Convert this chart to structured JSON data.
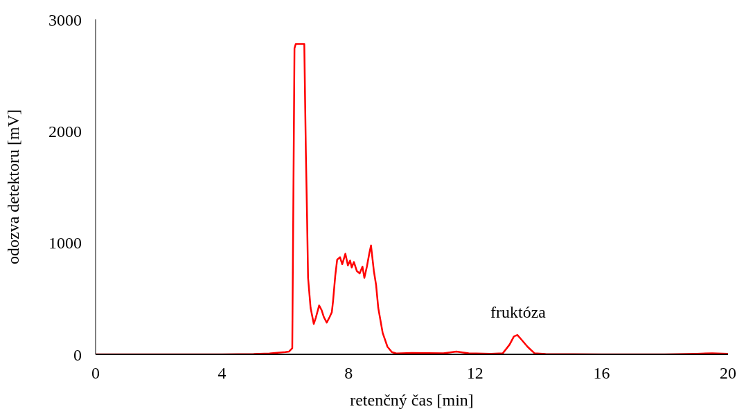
{
  "chart_data": {
    "type": "line",
    "xlabel": "retenčný čas [min]",
    "ylabel": "odozva detektoru [mV]",
    "x": [
      0,
      2,
      4,
      5,
      5.5,
      5.8,
      6.0,
      6.12,
      6.22,
      6.29,
      6.33,
      6.6,
      6.65,
      6.69,
      6.72,
      6.8,
      6.9,
      6.97,
      7.07,
      7.15,
      7.22,
      7.31,
      7.4,
      7.47,
      7.51,
      7.58,
      7.64,
      7.73,
      7.8,
      7.9,
      7.98,
      8.05,
      8.1,
      8.17,
      8.26,
      8.35,
      8.44,
      8.5,
      8.58,
      8.66,
      8.71,
      8.8,
      8.87,
      8.94,
      9.08,
      9.23,
      9.37,
      9.51,
      10,
      11,
      11.41,
      11.8,
      12.5,
      12.88,
      13.09,
      13.23,
      13.34,
      13.45,
      13.66,
      13.88,
      14.23,
      16,
      18,
      19,
      19.5,
      20
    ],
    "series": [
      {
        "color": "#ff0000",
        "values": [
          0,
          0,
          0,
          3,
          8,
          15,
          20,
          25,
          55,
          2740,
          2780,
          2780,
          1815,
          1198,
          685,
          415,
          272,
          333,
          438,
          395,
          333,
          284,
          333,
          376,
          477,
          704,
          848,
          870,
          807,
          901,
          796,
          840,
          778,
          827,
          747,
          724,
          786,
          685,
          786,
          909,
          975,
          747,
          623,
          415,
          191,
          68,
          20,
          8,
          12,
          10,
          25,
          10,
          5,
          10,
          86,
          160,
          173,
          138,
          68,
          10,
          3,
          0,
          0,
          5,
          10,
          5
        ]
      }
    ],
    "xlim": [
      0,
      20
    ],
    "xticks": [
      0,
      4,
      8,
      12,
      16,
      20
    ],
    "ylim": [
      0,
      3000
    ],
    "yticks": [
      0,
      1000,
      2000,
      3000
    ],
    "annotations": [
      "fruktóza"
    ]
  }
}
